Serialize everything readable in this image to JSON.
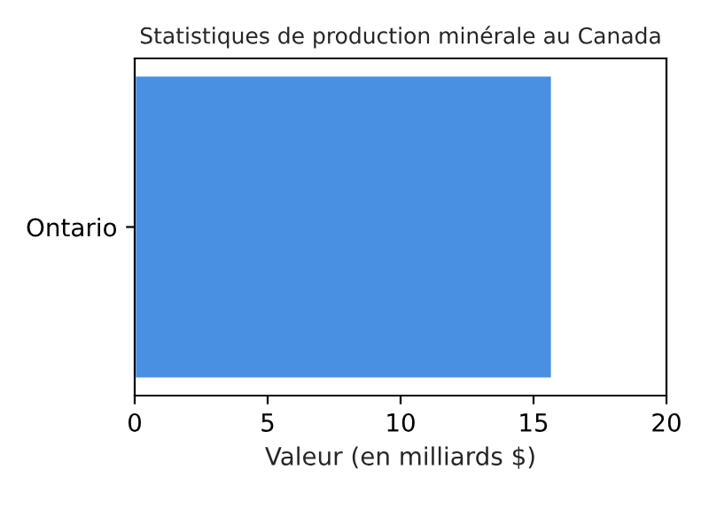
{
  "chart_data": {
    "type": "bar",
    "orientation": "horizontal",
    "title": "Statistiques de production minérale au Canada",
    "xlabel": "Valeur (en milliards $)",
    "categories": [
      "Ontario"
    ],
    "values": [
      15.7
    ],
    "color": "#4a90e2",
    "xlim": [
      0,
      20
    ],
    "xticks": [
      0,
      5,
      10,
      15,
      20
    ],
    "grid": false
  }
}
